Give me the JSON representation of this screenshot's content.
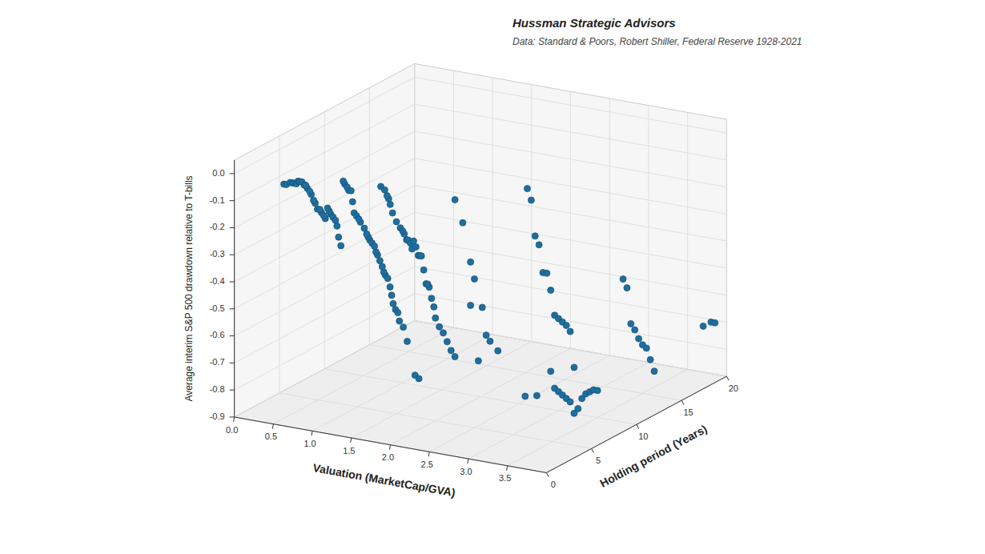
{
  "chart_data": {
    "type": "scatter",
    "title": "Hussman Strategic Advisors",
    "subtitle": "Data: Standard & Poors, Robert Shiller, Federal Reserve 1928-2021",
    "xlabel": "Valuation (MarketCap/GVA)",
    "ylabel": "Holding period (Years)",
    "zlabel": "Average interim S&P 500 drawdown relative to T-bills",
    "color": "#1e6fa0",
    "grid": true,
    "xlim": [
      0,
      4.0
    ],
    "ylim": [
      0,
      20
    ],
    "zlim": [
      -0.9,
      0.05
    ],
    "xticks": [
      {
        "value": 0,
        "label": "0.0"
      },
      0.5,
      {
        "value": 1.0,
        "label": "1.0"
      },
      1.5,
      {
        "value": 2.0,
        "label": "2.0"
      },
      2.5,
      {
        "value": 3.0,
        "label": "3.0"
      },
      3.5
    ],
    "yticks": [
      0,
      5,
      10,
      15,
      20
    ],
    "zticks": [
      -0.9,
      -0.8,
      -0.7,
      -0.6,
      -0.5,
      -0.4,
      -0.3,
      -0.2,
      -0.1,
      {
        "value": 0,
        "label": "0.0"
      }
    ],
    "x": [
      0.52,
      0.55,
      0.6,
      0.63,
      0.65,
      0.68,
      0.7,
      0.72,
      0.75,
      0.78,
      0.8,
      0.82,
      0.85,
      0.87,
      0.9,
      0.92,
      0.95,
      0.98,
      1.0,
      1.03,
      1.05,
      1.08,
      1.1,
      1.12,
      1.15,
      1.18,
      1.2,
      1.22,
      1.25,
      1.28,
      1.3,
      1.33,
      1.35,
      1.38,
      1.4,
      1.42,
      1.45,
      1.48,
      1.5,
      1.55,
      1.58,
      1.6,
      1.62,
      1.65,
      1.68,
      1.7,
      1.72,
      1.75,
      1.78,
      1.8,
      1.82,
      1.85,
      1.88,
      1.9,
      1.92,
      1.95,
      1.98,
      2.0,
      2.05,
      2.1,
      2.2,
      2.25,
      1.5,
      1.55,
      1.58,
      1.6,
      1.63,
      1.65,
      1.68,
      1.7,
      1.72,
      1.75,
      1.78,
      1.8,
      1.82,
      1.85,
      1.88,
      1.9,
      1.92,
      1.95,
      1.98,
      2.0,
      2.05,
      2.1,
      2.15,
      2.2,
      2.25,
      1.3,
      1.35,
      1.38,
      1.4,
      1.42,
      1.45,
      2.25,
      2.35,
      2.45,
      2.5,
      2.6,
      2.65,
      2.7,
      2.8,
      2.55,
      2.45,
      2.6,
      2.65,
      2.7,
      2.75,
      2.8,
      2.85,
      2.9,
      2.95,
      3.0,
      3.05,
      3.1,
      3.15,
      2.9,
      2.95,
      3.0,
      3.05,
      3.1,
      3.15,
      3.2,
      3.25,
      3.3,
      3.35,
      3.4,
      3.45,
      3.5,
      3.35,
      3.4,
      3.45,
      3.5,
      3.55,
      3.6,
      3.65,
      3.85,
      3.2,
      3.15,
      3.3,
      3.25,
      3.3,
      3.7,
      3.8
    ],
    "y": [
      1,
      1,
      1,
      1,
      1,
      1,
      1,
      1,
      1,
      1,
      1,
      1,
      1,
      1,
      1,
      1,
      1,
      1,
      1,
      1,
      1,
      1,
      1,
      1,
      1,
      1,
      1,
      1,
      1,
      1,
      1,
      1,
      1,
      1,
      1,
      1,
      1,
      1,
      1,
      1,
      1,
      1,
      1,
      1,
      1,
      1,
      1,
      1,
      1,
      1,
      1,
      1,
      1,
      1,
      1,
      1,
      1,
      1,
      1,
      1,
      1,
      1,
      5,
      5,
      5,
      5,
      5,
      5,
      5,
      5,
      5,
      5,
      5,
      5,
      5,
      5,
      5,
      5,
      5,
      5,
      5,
      5,
      5,
      5,
      5,
      5,
      5,
      5,
      5,
      5,
      5,
      5,
      5,
      5,
      5,
      5,
      5,
      5,
      5,
      5,
      5,
      5,
      5,
      10,
      10,
      10,
      10,
      10,
      10,
      10,
      10,
      10,
      10,
      10,
      10,
      10,
      10,
      10,
      10,
      10,
      10,
      10,
      10,
      10,
      10,
      10,
      10,
      10,
      15,
      15,
      15,
      15,
      15,
      15,
      15,
      20,
      10,
      5,
      5,
      15,
      15,
      20,
      20
    ],
    "z": [
      -0.03,
      -0.03,
      -0.02,
      -0.02,
      -0.02,
      -0.02,
      -0.01,
      -0.01,
      -0.01,
      -0.02,
      -0.02,
      -0.03,
      -0.04,
      -0.05,
      -0.07,
      -0.08,
      -0.1,
      -0.1,
      -0.11,
      -0.12,
      -0.13,
      -0.09,
      -0.1,
      -0.11,
      -0.12,
      -0.13,
      -0.15,
      -0.19,
      -0.22,
      0.02,
      0.01,
      0.0,
      -0.01,
      -0.01,
      -0.05,
      -0.09,
      -0.1,
      -0.11,
      -0.12,
      -0.14,
      -0.16,
      -0.17,
      -0.18,
      -0.19,
      -0.2,
      -0.22,
      -0.23,
      -0.25,
      -0.27,
      -0.29,
      -0.3,
      -0.31,
      -0.34,
      -0.37,
      -0.4,
      -0.42,
      -0.43,
      -0.46,
      -0.48,
      -0.53,
      -0.65,
      -0.66,
      -0.19,
      -0.21,
      -0.22,
      -0.23,
      -0.25,
      -0.25,
      -0.26,
      -0.28,
      -0.25,
      -0.27,
      -0.3,
      -0.3,
      -0.3,
      -0.35,
      -0.4,
      -0.4,
      -0.41,
      -0.45,
      -0.48,
      -0.52,
      -0.55,
      -0.57,
      -0.6,
      -0.63,
      -0.65,
      -0.07,
      -0.08,
      -0.1,
      -0.11,
      -0.13,
      -0.16,
      -0.07,
      -0.15,
      -0.29,
      -0.35,
      -0.45,
      -0.55,
      -0.57,
      -0.6,
      -0.65,
      -0.45,
      -0.1,
      -0.14,
      -0.27,
      -0.3,
      -0.4,
      -0.4,
      -0.46,
      -0.55,
      -0.56,
      -0.57,
      -0.58,
      -0.6,
      -0.76,
      -0.82,
      -0.83,
      -0.84,
      -0.85,
      -0.86,
      -0.9,
      -0.88,
      -0.84,
      -0.82,
      -0.81,
      -0.8,
      -0.8,
      -0.65,
      -0.67,
      -0.7,
      -0.72,
      -0.73,
      -0.77,
      -0.81,
      -0.71,
      -0.73,
      -0.75,
      -0.74,
      -0.49,
      -0.52,
      -0.73,
      -0.71
    ]
  }
}
